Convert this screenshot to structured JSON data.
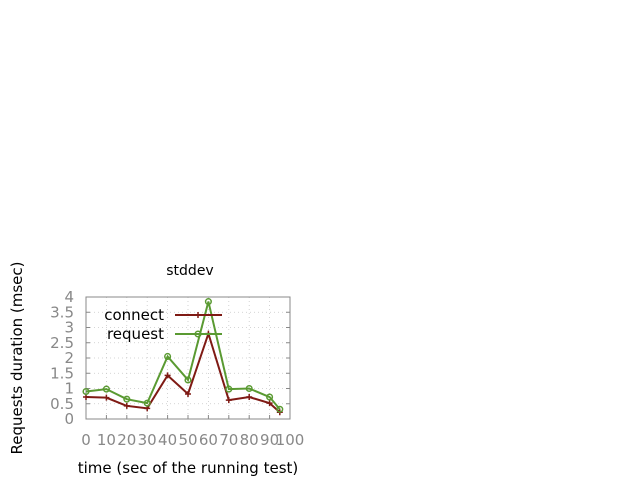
{
  "chart_data": {
    "type": "line",
    "title": "stddev",
    "xlabel": "time (sec of the running test)",
    "ylabel": "Requests duration (msec)",
    "xlim": [
      0,
      100
    ],
    "ylim": [
      0,
      4
    ],
    "x_ticks": [
      "0",
      "10",
      "20",
      "30",
      "40",
      "50",
      "60",
      "70",
      "80",
      "90",
      "100"
    ],
    "y_ticks": [
      "0",
      "0.5",
      "1",
      "1.5",
      "2",
      "2.5",
      "3",
      "3.5",
      "4"
    ],
    "grid": true,
    "legend_position": "top-left",
    "x": [
      0,
      10,
      20,
      30,
      40,
      50,
      60,
      70,
      80,
      90,
      95
    ],
    "series": [
      {
        "name": "connect",
        "color": "#7f1a14",
        "marker": "plus",
        "values": [
          0.72,
          0.7,
          0.43,
          0.35,
          1.43,
          0.82,
          2.8,
          0.62,
          0.72,
          0.52,
          0.22
        ]
      },
      {
        "name": "request",
        "color": "#5a9a32",
        "marker": "circle",
        "values": [
          0.9,
          0.98,
          0.65,
          0.52,
          2.05,
          1.28,
          3.85,
          0.98,
          1.0,
          0.72,
          0.32
        ]
      }
    ]
  }
}
